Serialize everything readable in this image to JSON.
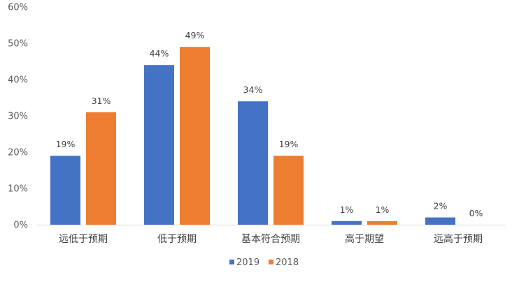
{
  "chart_data": {
    "type": "bar",
    "categories": [
      "远低于预期",
      "低于预期",
      "基本符合预期",
      "高于期望",
      "远高于预期"
    ],
    "series": [
      {
        "name": "2019",
        "values": [
          19,
          44,
          34,
          1,
          2
        ],
        "labels": [
          "19%",
          "44%",
          "34%",
          "1%",
          "2%"
        ],
        "color": "#4472c4"
      },
      {
        "name": "2018",
        "values": [
          31,
          49,
          19,
          1,
          0
        ],
        "labels": [
          "31%",
          "49%",
          "19%",
          "1%",
          "0%"
        ],
        "color": "#ed7d31"
      }
    ],
    "y_ticks": [
      "0%",
      "10%",
      "20%",
      "30%",
      "40%",
      "50%",
      "60%"
    ],
    "ylim": [
      0,
      60
    ],
    "grid": false,
    "legend_position": "bottom"
  }
}
